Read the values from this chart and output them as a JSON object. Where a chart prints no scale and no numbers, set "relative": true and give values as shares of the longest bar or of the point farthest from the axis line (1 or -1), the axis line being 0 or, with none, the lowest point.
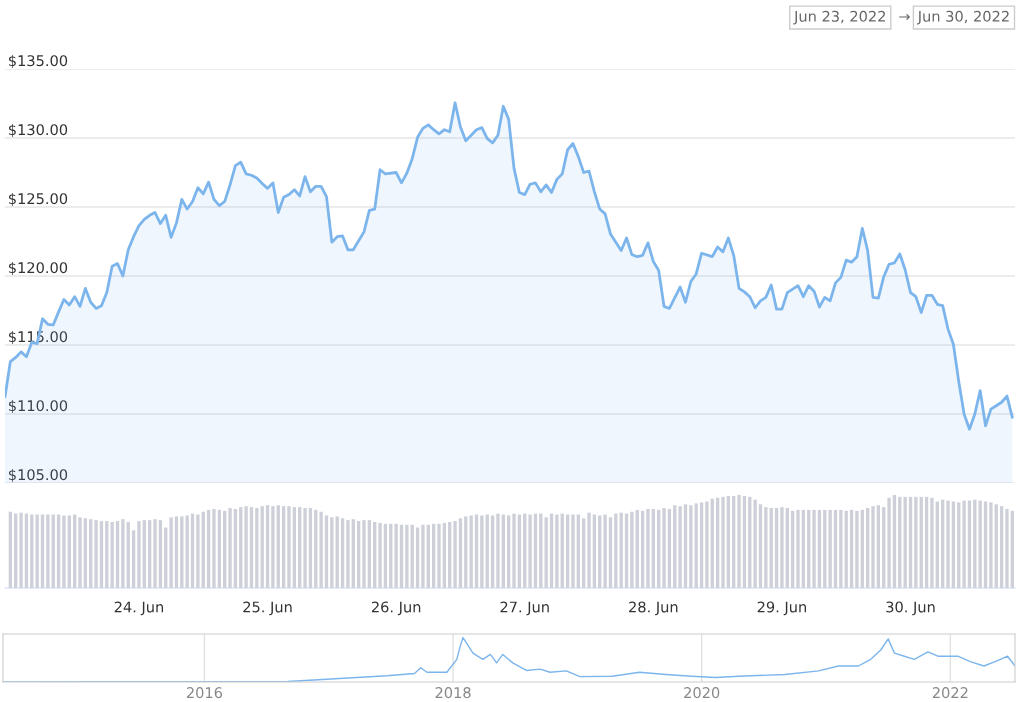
{
  "chart_data": [
    {
      "type": "area",
      "annotations": [
        "Jun 23, 2022",
        "→",
        "Jun 30, 2022"
      ],
      "xlim": [
        "2022-06-22T23:00",
        "2022-06-30T19:30"
      ],
      "ylim": [
        105,
        135
      ],
      "yticks": [
        {
          "value": 105,
          "label": "$105.00"
        },
        {
          "value": 110,
          "label": "$110.00"
        },
        {
          "value": 115,
          "label": "$115.00"
        },
        {
          "value": 120,
          "label": "$120.00"
        },
        {
          "value": 125,
          "label": "$125.00"
        },
        {
          "value": 130,
          "label": "$130.00"
        },
        {
          "value": 135,
          "label": "$135.00"
        }
      ],
      "grid": "y",
      "tick_labels": "y",
      "x": [
        "2022-06-22T23:00",
        "2022-06-23T00:00",
        "2022-06-23T01:00",
        "2022-06-23T02:00",
        "2022-06-23T03:00",
        "2022-06-23T04:00",
        "2022-06-23T05:00",
        "2022-06-23T06:00",
        "2022-06-23T07:00",
        "2022-06-23T08:00",
        "2022-06-23T09:00",
        "2022-06-23T10:00",
        "2022-06-23T11:00",
        "2022-06-23T12:00",
        "2022-06-23T13:00",
        "2022-06-23T14:00",
        "2022-06-23T15:00",
        "2022-06-23T16:00",
        "2022-06-23T17:00",
        "2022-06-23T18:00",
        "2022-06-23T19:00",
        "2022-06-23T20:00",
        "2022-06-23T21:00",
        "2022-06-23T22:00",
        "2022-06-23T23:00",
        "2022-06-24T00:00",
        "2022-06-24T01:00",
        "2022-06-24T02:00",
        "2022-06-24T03:00",
        "2022-06-24T04:00",
        "2022-06-24T05:00",
        "2022-06-24T06:00",
        "2022-06-24T07:00",
        "2022-06-24T08:00",
        "2022-06-24T09:00",
        "2022-06-24T10:00",
        "2022-06-24T11:00",
        "2022-06-24T12:00",
        "2022-06-24T13:00",
        "2022-06-24T14:00",
        "2022-06-24T15:00",
        "2022-06-24T16:00",
        "2022-06-24T17:00",
        "2022-06-24T18:00",
        "2022-06-24T19:00",
        "2022-06-24T20:00",
        "2022-06-24T21:00",
        "2022-06-24T22:00",
        "2022-06-24T23:00",
        "2022-06-25T00:00",
        "2022-06-25T01:00",
        "2022-06-25T02:00",
        "2022-06-25T03:00",
        "2022-06-25T04:00",
        "2022-06-25T05:00",
        "2022-06-25T06:00",
        "2022-06-25T07:00",
        "2022-06-25T08:00",
        "2022-06-25T09:00",
        "2022-06-25T10:00",
        "2022-06-25T11:00",
        "2022-06-25T12:00",
        "2022-06-25T13:00",
        "2022-06-25T14:00",
        "2022-06-25T15:00",
        "2022-06-25T16:00",
        "2022-06-25T18:00",
        "2022-06-25T19:00",
        "2022-06-25T20:00",
        "2022-06-25T21:00",
        "2022-06-25T22:00",
        "2022-06-26T00:00",
        "2022-06-26T01:00",
        "2022-06-26T02:00",
        "2022-06-26T03:00",
        "2022-06-26T04:00",
        "2022-06-26T05:00",
        "2022-06-26T06:00",
        "2022-06-26T07:00",
        "2022-06-26T08:00",
        "2022-06-26T09:00",
        "2022-06-26T10:00",
        "2022-06-26T11:00",
        "2022-06-26T12:00",
        "2022-06-26T13:00",
        "2022-06-26T14:00",
        "2022-06-26T15:00",
        "2022-06-26T16:00",
        "2022-06-26T17:00",
        "2022-06-26T18:00",
        "2022-06-26T19:00",
        "2022-06-26T20:00",
        "2022-06-26T21:00",
        "2022-06-26T22:00",
        "2022-06-26T23:00",
        "2022-06-27T00:00",
        "2022-06-27T01:00",
        "2022-06-27T02:00",
        "2022-06-27T03:00",
        "2022-06-27T04:00",
        "2022-06-27T05:00",
        "2022-06-27T06:00",
        "2022-06-27T07:00",
        "2022-06-27T08:00",
        "2022-06-27T09:00",
        "2022-06-27T10:00",
        "2022-06-27T11:00",
        "2022-06-27T12:00",
        "2022-06-27T13:00",
        "2022-06-27T14:00",
        "2022-06-27T15:00",
        "2022-06-27T16:00",
        "2022-06-27T18:00",
        "2022-06-27T19:00",
        "2022-06-27T20:00",
        "2022-06-27T21:00",
        "2022-06-27T22:00",
        "2022-06-27T23:00",
        "2022-06-28T00:00",
        "2022-06-28T01:00",
        "2022-06-28T02:00",
        "2022-06-28T03:00",
        "2022-06-28T05:00",
        "2022-06-28T06:00",
        "2022-06-28T07:00",
        "2022-06-28T08:00",
        "2022-06-28T09:00",
        "2022-06-28T11:00",
        "2022-06-28T12:00",
        "2022-06-28T13:00",
        "2022-06-28T14:00",
        "2022-06-28T15:00",
        "2022-06-28T16:00",
        "2022-06-28T17:00",
        "2022-06-28T18:00",
        "2022-06-28T19:00",
        "2022-06-28T20:00",
        "2022-06-28T21:00",
        "2022-06-28T22:00",
        "2022-06-28T23:00",
        "2022-06-29T00:00",
        "2022-06-29T01:00",
        "2022-06-29T02:00",
        "2022-06-29T03:00",
        "2022-06-29T04:00",
        "2022-06-29T05:00",
        "2022-06-29T06:00",
        "2022-06-29T07:00",
        "2022-06-29T08:00",
        "2022-06-29T09:00",
        "2022-06-29T10:00",
        "2022-06-29T11:00",
        "2022-06-29T12:00",
        "2022-06-29T13:00",
        "2022-06-29T14:00",
        "2022-06-29T15:00",
        "2022-06-29T16:00",
        "2022-06-29T17:00",
        "2022-06-29T18:00",
        "2022-06-29T19:00",
        "2022-06-29T20:00",
        "2022-06-29T21:00",
        "2022-06-29T22:00",
        "2022-06-29T23:00",
        "2022-06-30T00:00",
        "2022-06-30T01:00",
        "2022-06-30T02:00",
        "2022-06-30T03:00",
        "2022-06-30T04:00",
        "2022-06-30T05:00",
        "2022-06-30T06:00",
        "2022-06-30T07:00",
        "2022-06-30T08:00",
        "2022-06-30T09:00",
        "2022-06-30T10:00",
        "2022-06-30T11:00",
        "2022-06-30T12:00",
        "2022-06-30T13:00",
        "2022-06-30T14:00",
        "2022-06-30T15:00",
        "2022-06-30T16:00",
        "2022-06-30T17:00",
        "2022-06-30T18:00",
        "2022-06-30T19:00"
      ],
      "series": [
        {
          "color": "#7cb5ec",
          "values": [
            111.25,
            113.8,
            114.1,
            114.5,
            114.15,
            115.2,
            115.1,
            116.9,
            116.5,
            116.45,
            117.4,
            118.3,
            117.9,
            118.5,
            117.8,
            119.1,
            118.1,
            117.65,
            117.85,
            118.8,
            120.7,
            120.9,
            120.0,
            121.9,
            122.85,
            123.65,
            124.1,
            124.4,
            124.6,
            123.8,
            124.4,
            122.8,
            123.85,
            125.55,
            124.85,
            125.4,
            126.4,
            125.95,
            126.8,
            125.55,
            125.1,
            125.4,
            126.6,
            128.0,
            128.25,
            127.4,
            127.3,
            127.1,
            126.7,
            126.35,
            126.75,
            124.6,
            125.7,
            125.9,
            126.25,
            125.8,
            127.2,
            126.1,
            126.5,
            126.5,
            125.75,
            122.45,
            122.85,
            122.9,
            121.9,
            121.9,
            123.2,
            124.75,
            124.85,
            127.7,
            127.4,
            127.5,
            126.75,
            127.45,
            128.5,
            130.05,
            130.7,
            130.95,
            130.6,
            130.3,
            130.6,
            130.45,
            132.55,
            130.8,
            129.8,
            130.2,
            130.6,
            130.75,
            129.95,
            129.65,
            130.2,
            132.3,
            131.35,
            127.8,
            126.05,
            125.9,
            126.65,
            126.75,
            126.1,
            126.6,
            126.05,
            127.0,
            127.4,
            129.15,
            129.6,
            128.65,
            127.5,
            127.6,
            126.1,
            124.85,
            124.5,
            123.05,
            121.85,
            122.75,
            121.55,
            121.4,
            121.5,
            122.4,
            121.05,
            120.4,
            117.8,
            117.65,
            119.2,
            118.1,
            119.6,
            120.15,
            121.65,
            121.4,
            122.1,
            121.75,
            122.75,
            121.5,
            119.1,
            118.85,
            118.5,
            117.7,
            118.2,
            118.45,
            119.35,
            117.6,
            117.6,
            118.8,
            119.05,
            119.3,
            118.5,
            119.3,
            118.9,
            117.75,
            118.45,
            118.2,
            119.5,
            119.9,
            121.15,
            121.0,
            121.4,
            123.45,
            121.85,
            118.45,
            118.4,
            119.95,
            120.85,
            120.95,
            121.6,
            120.45,
            118.8,
            118.5,
            117.35,
            118.6,
            118.6,
            117.95,
            117.85,
            116.15,
            115.05,
            112.35,
            110.0,
            108.9,
            110.0,
            111.7,
            109.15,
            110.35,
            110.6,
            110.85,
            111.3,
            109.75
          ]
        }
      ]
    },
    {
      "type": "bar",
      "relative": true,
      "tick_labels": "x",
      "xlim": [
        "2022-06-22T23:00",
        "2022-06-30T19:30"
      ],
      "xticks": [
        {
          "value": "2022-06-24",
          "label": "24. Jun"
        },
        {
          "value": "2022-06-25",
          "label": "25. Jun"
        },
        {
          "value": "2022-06-26",
          "label": "26. Jun"
        },
        {
          "value": "2022-06-27",
          "label": "27. Jun"
        },
        {
          "value": "2022-06-28",
          "label": "28. Jun"
        },
        {
          "value": "2022-06-29",
          "label": "29. Jun"
        },
        {
          "value": "2022-06-30",
          "label": "30. Jun"
        }
      ],
      "grid": false,
      "x": [
        "2022-06-23T00:00",
        "2022-06-23T01:00",
        "2022-06-23T02:00",
        "2022-06-23T03:00",
        "2022-06-23T04:00",
        "2022-06-23T05:00",
        "2022-06-23T06:00",
        "2022-06-23T07:00",
        "2022-06-23T08:00",
        "2022-06-23T09:00",
        "2022-06-23T10:00",
        "2022-06-23T11:00",
        "2022-06-23T12:00",
        "2022-06-23T13:00",
        "2022-06-23T14:00",
        "2022-06-23T15:00",
        "2022-06-23T16:00",
        "2022-06-23T17:00",
        "2022-06-23T18:00",
        "2022-06-23T19:00",
        "2022-06-23T20:00",
        "2022-06-23T21:00",
        "2022-06-23T22:00",
        "2022-06-23T23:00",
        "2022-06-24T00:00",
        "2022-06-24T01:00",
        "2022-06-24T02:00",
        "2022-06-24T03:00",
        "2022-06-24T04:00",
        "2022-06-24T05:00",
        "2022-06-24T06:00",
        "2022-06-24T07:00",
        "2022-06-24T08:00",
        "2022-06-24T09:00",
        "2022-06-24T10:00",
        "2022-06-24T11:00",
        "2022-06-24T12:00",
        "2022-06-24T13:00",
        "2022-06-24T14:00",
        "2022-06-24T15:00",
        "2022-06-24T16:00",
        "2022-06-24T17:00",
        "2022-06-24T18:00",
        "2022-06-24T19:00",
        "2022-06-24T20:00",
        "2022-06-24T21:00",
        "2022-06-24T22:00",
        "2022-06-24T23:00",
        "2022-06-25T00:00",
        "2022-06-25T01:00",
        "2022-06-25T02:00",
        "2022-06-25T03:00",
        "2022-06-25T04:00",
        "2022-06-25T05:00",
        "2022-06-25T06:00",
        "2022-06-25T07:00",
        "2022-06-25T08:00",
        "2022-06-25T09:00",
        "2022-06-25T10:00",
        "2022-06-25T11:00",
        "2022-06-25T12:00",
        "2022-06-25T13:00",
        "2022-06-25T14:00",
        "2022-06-25T15:00",
        "2022-06-25T16:00",
        "2022-06-25T17:00",
        "2022-06-25T18:00",
        "2022-06-25T19:00",
        "2022-06-25T20:00",
        "2022-06-25T21:00",
        "2022-06-25T22:00",
        "2022-06-25T23:00",
        "2022-06-26T00:00",
        "2022-06-26T01:00",
        "2022-06-26T02:00",
        "2022-06-26T03:00",
        "2022-06-26T04:00",
        "2022-06-26T05:00",
        "2022-06-26T06:00",
        "2022-06-26T07:00",
        "2022-06-26T08:00",
        "2022-06-26T09:00",
        "2022-06-26T10:00",
        "2022-06-26T11:00",
        "2022-06-26T12:00",
        "2022-06-26T13:00",
        "2022-06-26T14:00",
        "2022-06-26T15:00",
        "2022-06-26T16:00",
        "2022-06-26T17:00",
        "2022-06-26T18:00",
        "2022-06-26T19:00",
        "2022-06-26T20:00",
        "2022-06-26T21:00",
        "2022-06-26T22:00",
        "2022-06-26T23:00",
        "2022-06-27T00:00",
        "2022-06-27T01:00",
        "2022-06-27T02:00",
        "2022-06-27T03:00",
        "2022-06-27T04:00",
        "2022-06-27T05:00",
        "2022-06-27T06:00",
        "2022-06-27T07:00",
        "2022-06-27T08:00",
        "2022-06-27T09:00",
        "2022-06-27T10:00",
        "2022-06-27T11:00",
        "2022-06-27T12:00",
        "2022-06-27T13:00",
        "2022-06-27T14:00",
        "2022-06-27T15:00",
        "2022-06-27T16:00",
        "2022-06-27T17:00",
        "2022-06-27T18:00",
        "2022-06-27T19:00",
        "2022-06-27T20:00",
        "2022-06-27T21:00",
        "2022-06-27T22:00",
        "2022-06-27T23:00",
        "2022-06-28T00:00",
        "2022-06-28T01:00",
        "2022-06-28T02:00",
        "2022-06-28T03:00",
        "2022-06-28T04:00",
        "2022-06-28T05:00",
        "2022-06-28T06:00",
        "2022-06-28T07:00",
        "2022-06-28T08:00",
        "2022-06-28T09:00",
        "2022-06-28T10:00",
        "2022-06-28T11:00",
        "2022-06-28T12:00",
        "2022-06-28T13:00",
        "2022-06-28T14:00",
        "2022-06-28T15:00",
        "2022-06-28T16:00",
        "2022-06-28T17:00",
        "2022-06-28T18:00",
        "2022-06-28T19:00",
        "2022-06-28T20:00",
        "2022-06-28T21:00",
        "2022-06-28T22:00",
        "2022-06-28T23:00",
        "2022-06-29T00:00",
        "2022-06-29T01:00",
        "2022-06-29T02:00",
        "2022-06-29T03:00",
        "2022-06-29T04:00",
        "2022-06-29T05:00",
        "2022-06-29T06:00",
        "2022-06-29T07:00",
        "2022-06-29T08:00",
        "2022-06-29T09:00",
        "2022-06-29T10:00",
        "2022-06-29T11:00",
        "2022-06-29T12:00",
        "2022-06-29T13:00",
        "2022-06-29T14:00",
        "2022-06-29T15:00",
        "2022-06-29T16:00",
        "2022-06-29T17:00",
        "2022-06-29T18:00",
        "2022-06-29T19:00",
        "2022-06-29T20:00",
        "2022-06-29T21:00",
        "2022-06-29T22:00",
        "2022-06-29T23:00",
        "2022-06-30T00:00",
        "2022-06-30T01:00",
        "2022-06-30T02:00",
        "2022-06-30T03:00",
        "2022-06-30T04:00",
        "2022-06-30T05:00",
        "2022-06-30T06:00",
        "2022-06-30T07:00",
        "2022-06-30T08:00",
        "2022-06-30T09:00",
        "2022-06-30T10:00",
        "2022-06-30T11:00",
        "2022-06-30T12:00",
        "2022-06-30T13:00",
        "2022-06-30T14:00",
        "2022-06-30T15:00",
        "2022-06-30T16:00",
        "2022-06-30T17:00",
        "2022-06-30T18:00",
        "2022-06-30T19:00"
      ],
      "series": [
        {
          "color": "#cdd0d8",
          "values": [
            0.82,
            0.8,
            0.81,
            0.8,
            0.79,
            0.79,
            0.79,
            0.79,
            0.79,
            0.79,
            0.78,
            0.78,
            0.79,
            0.76,
            0.75,
            0.74,
            0.73,
            0.72,
            0.72,
            0.71,
            0.72,
            0.74,
            0.71,
            0.62,
            0.72,
            0.73,
            0.73,
            0.74,
            0.73,
            0.65,
            0.76,
            0.77,
            0.77,
            0.78,
            0.8,
            0.79,
            0.82,
            0.84,
            0.85,
            0.84,
            0.83,
            0.86,
            0.85,
            0.87,
            0.88,
            0.87,
            0.86,
            0.88,
            0.89,
            0.88,
            0.89,
            0.88,
            0.88,
            0.87,
            0.87,
            0.86,
            0.86,
            0.84,
            0.82,
            0.78,
            0.76,
            0.77,
            0.75,
            0.73,
            0.74,
            0.72,
            0.73,
            0.73,
            0.71,
            0.7,
            0.69,
            0.69,
            0.69,
            0.68,
            0.68,
            0.68,
            0.65,
            0.68,
            0.68,
            0.69,
            0.69,
            0.7,
            0.71,
            0.72,
            0.75,
            0.77,
            0.78,
            0.79,
            0.78,
            0.79,
            0.78,
            0.8,
            0.79,
            0.78,
            0.8,
            0.79,
            0.8,
            0.79,
            0.8,
            0.8,
            0.76,
            0.8,
            0.79,
            0.8,
            0.79,
            0.79,
            0.79,
            0.75,
            0.81,
            0.79,
            0.78,
            0.79,
            0.76,
            0.8,
            0.81,
            0.8,
            0.82,
            0.84,
            0.83,
            0.85,
            0.85,
            0.84,
            0.86,
            0.85,
            0.89,
            0.88,
            0.9,
            0.89,
            0.91,
            0.92,
            0.93,
            0.96,
            0.97,
            0.98,
            0.99,
            0.99,
            1.0,
            0.99,
            0.98,
            0.95,
            0.9,
            0.87,
            0.86,
            0.86,
            0.87,
            0.86,
            0.83,
            0.84,
            0.84,
            0.84,
            0.84,
            0.84,
            0.84,
            0.84,
            0.84,
            0.84,
            0.83,
            0.84,
            0.83,
            0.84,
            0.86,
            0.88,
            0.89,
            0.87,
            0.97,
            1.0,
            0.98,
            0.98,
            0.98,
            0.98,
            0.98,
            0.98,
            0.97,
            0.93,
            0.95,
            0.94,
            0.93,
            0.92,
            0.94,
            0.94,
            0.95,
            0.94,
            0.93,
            0.92,
            0.9,
            0.88,
            0.85,
            0.83
          ]
        }
      ]
    },
    {
      "type": "line",
      "relative": true,
      "tick_labels": "x",
      "grid": "x",
      "xlim": [
        2014.38,
        2022.52
      ],
      "xticks": [
        2016,
        2018,
        2020,
        2022
      ],
      "x": [
        2014.38,
        2016.67,
        2017.47,
        2017.69,
        2017.74,
        2017.79,
        2017.95,
        2018.03,
        2018.06,
        2018.08,
        2018.11,
        2018.16,
        2018.24,
        2018.3,
        2018.35,
        2018.4,
        2018.48,
        2018.59,
        2018.7,
        2018.78,
        2018.91,
        2019.02,
        2019.28,
        2019.5,
        2019.71,
        2019.92,
        2020.11,
        2020.3,
        2020.67,
        2020.94,
        2021.1,
        2021.26,
        2021.36,
        2021.44,
        2021.5,
        2021.55,
        2021.63,
        2021.71,
        2021.82,
        2021.9,
        2022.06,
        2022.16,
        2022.27,
        2022.38,
        2022.46,
        2022.52
      ],
      "series": [
        {
          "color": "#7cb5ec",
          "values": [
            0,
            0.01,
            0.14,
            0.19,
            0.32,
            0.22,
            0.22,
            0.51,
            0.83,
            1.0,
            0.87,
            0.65,
            0.51,
            0.62,
            0.43,
            0.62,
            0.43,
            0.26,
            0.29,
            0.22,
            0.25,
            0.12,
            0.13,
            0.22,
            0.17,
            0.13,
            0.1,
            0.13,
            0.17,
            0.25,
            0.36,
            0.36,
            0.51,
            0.72,
            0.97,
            0.65,
            0.58,
            0.51,
            0.68,
            0.58,
            0.58,
            0.46,
            0.36,
            0.48,
            0.58,
            0.36
          ]
        }
      ]
    }
  ]
}
